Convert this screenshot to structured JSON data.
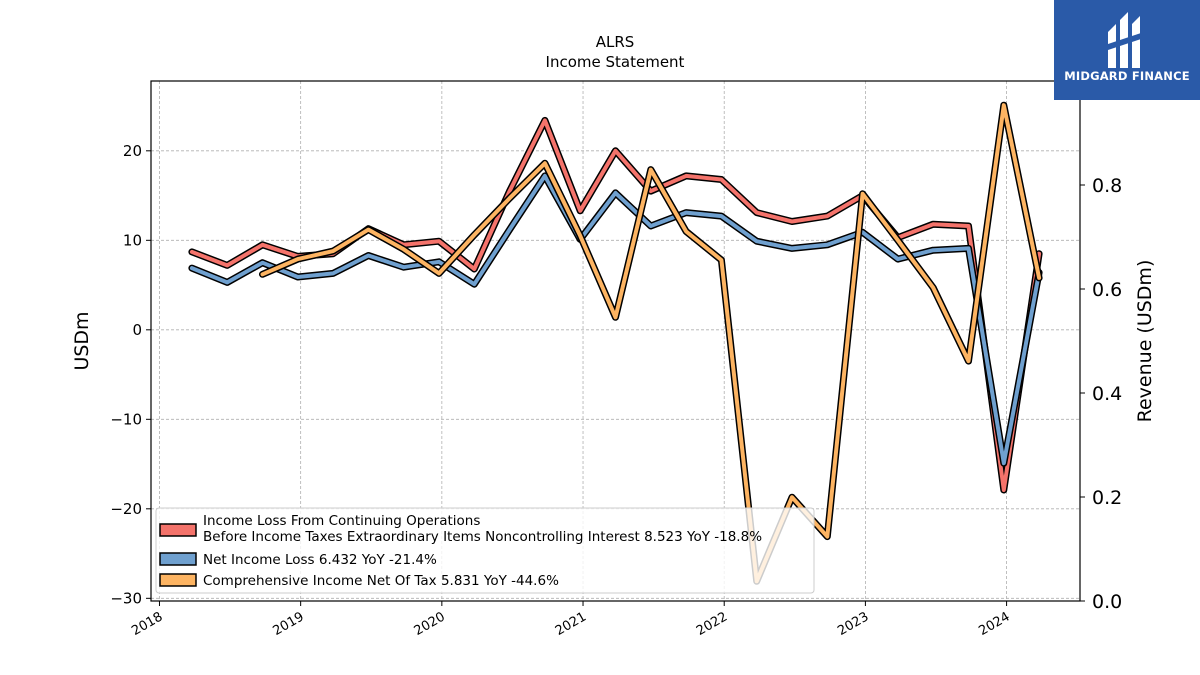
{
  "chart_data": {
    "type": "line",
    "title": "ALRS",
    "subtitle": "Income Statement",
    "ylabel": "USDm",
    "ylabel_right": "Revenue (USDm)",
    "ylim": [
      -30.3,
      27.8
    ],
    "ylim_right": [
      0.0,
      1.0
    ],
    "yticks": [
      -30,
      -20,
      -10,
      0,
      10,
      20
    ],
    "yticks_right": [
      0.0,
      0.2,
      0.4,
      0.6,
      0.8
    ],
    "xlim": [
      2017.94,
      2024.52
    ],
    "xticks": [
      2018,
      2019,
      2020,
      2021,
      2022,
      2023,
      2024
    ],
    "grid": true,
    "legend_position": "lower-left",
    "series": [
      {
        "name": "Income Loss From Continuing Operations\nBefore Income Taxes Extraordinary Items Noncontrolling Interest  8.523 YoY -18.8%",
        "name_line1": "Income Loss From Continuing Operations",
        "name_line2": "Before Income Taxes Extraordinary Items Noncontrolling Interest  8.523 YoY -18.8%",
        "color": "#f4736b",
        "x": [
          2018.23,
          2018.48,
          2018.73,
          2018.98,
          2019.23,
          2019.48,
          2019.73,
          2019.98,
          2020.23,
          2020.48,
          2020.73,
          2020.98,
          2021.23,
          2021.48,
          2021.73,
          2021.98,
          2022.23,
          2022.48,
          2022.73,
          2022.98,
          2023.23,
          2023.48,
          2023.73,
          2023.98,
          2024.23
        ],
        "y": [
          8.7,
          7.2,
          9.5,
          8.2,
          8.5,
          11.3,
          9.5,
          9.9,
          6.8,
          15.5,
          23.4,
          13.3,
          20.0,
          15.5,
          17.2,
          16.8,
          13.1,
          12.1,
          12.7,
          15.0,
          10.3,
          11.8,
          11.6,
          -17.9,
          8.5
        ]
      },
      {
        "name": "Net Income Loss  6.432 YoY -21.4%",
        "color": "#6fa0cf",
        "x": [
          2018.23,
          2018.48,
          2018.73,
          2018.98,
          2019.23,
          2019.48,
          2019.73,
          2019.98,
          2020.23,
          2020.48,
          2020.73,
          2020.98,
          2021.23,
          2021.48,
          2021.73,
          2021.98,
          2022.23,
          2022.48,
          2022.73,
          2022.98,
          2023.23,
          2023.48,
          2023.73,
          2023.98,
          2024.23
        ],
        "y": [
          6.9,
          5.3,
          7.5,
          5.9,
          6.3,
          8.3,
          7.0,
          7.6,
          5.1,
          11.2,
          17.2,
          10.1,
          15.3,
          11.6,
          13.1,
          12.7,
          9.9,
          9.1,
          9.5,
          10.9,
          7.9,
          8.9,
          9.1,
          -14.9,
          6.4
        ]
      },
      {
        "name": "Comprehensive Income Net Of Tax  5.831 YoY -44.6%",
        "color": "#fdb462",
        "x": [
          2018.73,
          2018.98,
          2019.23,
          2019.48,
          2019.73,
          2019.98,
          2020.23,
          2020.48,
          2020.73,
          2020.98,
          2021.23,
          2021.48,
          2021.73,
          2021.98,
          2022.23,
          2022.48,
          2022.73,
          2022.98,
          2023.23,
          2023.48,
          2023.73,
          2023.98,
          2024.23
        ],
        "y": [
          6.2,
          7.9,
          8.8,
          11.2,
          9.0,
          6.3,
          10.6,
          14.7,
          18.6,
          10.5,
          1.4,
          17.9,
          11.0,
          7.8,
          -28.1,
          -18.7,
          -23.1,
          15.2,
          10.0,
          4.7,
          -3.5,
          25.1,
          5.8
        ]
      }
    ]
  },
  "brand": {
    "name": "MIDGARD FINANCE",
    "background": "#2a5aa8"
  }
}
